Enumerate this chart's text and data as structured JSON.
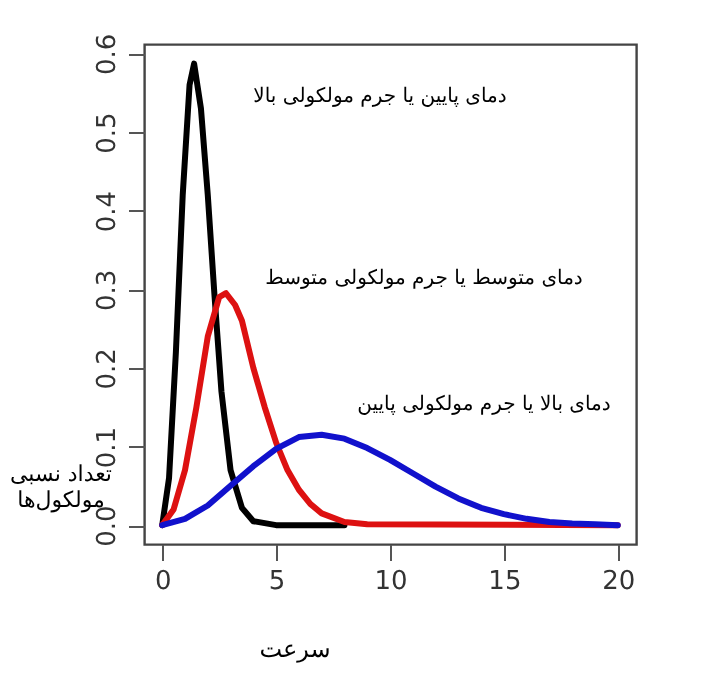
{
  "chart_data": {
    "type": "line",
    "xlabel": "سرعت",
    "ylabel": "تعداد نسبی\nمولکول‌ها",
    "xlim": [
      -0.8,
      20.8
    ],
    "xticks": [
      0,
      5,
      10,
      15,
      20
    ],
    "ylim": [
      -0.024,
      0.612
    ],
    "yticks": [
      {
        "value": 0,
        "label": "0.0"
      },
      {
        "value": 0.1,
        "label": "0.1"
      },
      {
        "value": 0.2,
        "label": "0.2"
      },
      {
        "value": 0.3,
        "label": "0.3"
      },
      {
        "value": 0.4,
        "label": "0.4"
      },
      {
        "value": 0.5,
        "label": "0.5"
      },
      {
        "value": 0.6,
        "label": "0.6"
      }
    ],
    "grid": false,
    "legend": false,
    "marker": "none",
    "line_style": "solid",
    "series": [
      {
        "name": "دمای پایین یا جرم مولکولی بالا",
        "color": "#000000",
        "x": [
          0,
          0.3,
          0.6,
          0.9,
          1.2,
          1.4,
          1.7,
          2,
          2.3,
          2.6,
          3,
          3.5,
          4,
          5,
          8
        ],
        "values": [
          0,
          0.06,
          0.22,
          0.42,
          0.56,
          0.587,
          0.53,
          0.42,
          0.29,
          0.17,
          0.07,
          0.022,
          0.005,
          0,
          0
        ]
      },
      {
        "name": "دمای متوسط یا جرم مولکولی متوسط",
        "color": "#dd1111",
        "x": [
          0,
          0.5,
          1,
          1.5,
          2,
          2.5,
          2.8,
          3.2,
          3.5,
          4,
          4.5,
          5,
          5.5,
          6,
          6.5,
          7,
          8,
          9,
          20
        ],
        "values": [
          0,
          0.02,
          0.07,
          0.15,
          0.24,
          0.29,
          0.295,
          0.28,
          0.26,
          0.2,
          0.15,
          0.105,
          0.07,
          0.045,
          0.027,
          0.015,
          0.004,
          0.001,
          0
        ]
      },
      {
        "name": "دمای بالا یا جرم مولکولی پایین",
        "color": "#1111cc",
        "x": [
          0,
          1,
          2,
          3,
          4,
          5,
          6,
          7,
          8,
          9,
          10,
          11,
          12,
          13,
          14,
          15,
          16,
          17,
          18,
          19,
          20
        ],
        "values": [
          0,
          0.008,
          0.025,
          0.05,
          0.075,
          0.097,
          0.112,
          0.115,
          0.11,
          0.098,
          0.083,
          0.066,
          0.049,
          0.034,
          0.022,
          0.014,
          0.008,
          0.004,
          0.002,
          0.001,
          0
        ]
      }
    ]
  }
}
